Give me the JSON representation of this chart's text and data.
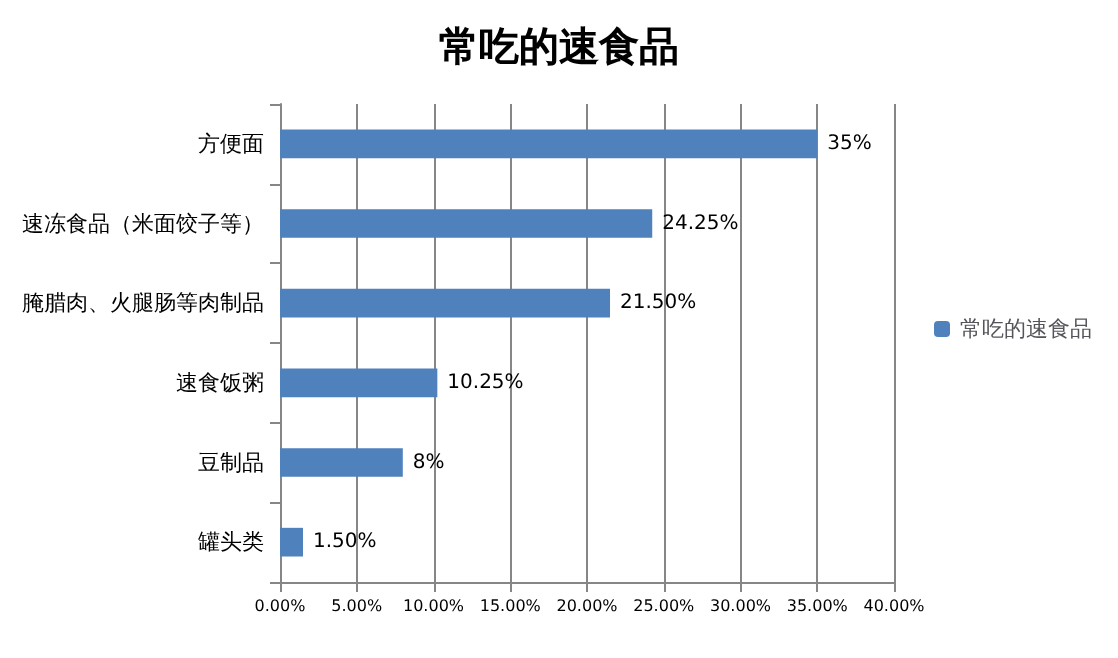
{
  "chart_data": {
    "type": "bar",
    "orientation": "horizontal",
    "title": "常吃的速食品",
    "categories": [
      "方便面",
      "速冻食品（米面饺子等）",
      "腌腊肉、火腿肠等肉制品",
      "速食饭粥",
      "豆制品",
      "罐头类"
    ],
    "series": [
      {
        "name": "常吃的速食品",
        "color": "#4f81bd",
        "values": [
          35,
          24.25,
          21.5,
          10.25,
          8,
          1.5
        ],
        "value_labels": [
          "35%",
          "24.25%",
          "21.50%",
          "10.25%",
          "8%",
          "1.50%"
        ]
      }
    ],
    "xlim": [
      0,
      40
    ],
    "xticks": [
      {
        "value": 0,
        "label": "0.00%"
      },
      {
        "value": 5,
        "label": "5.00%"
      },
      {
        "value": 10,
        "label": "10.00%"
      },
      {
        "value": 15,
        "label": "15.00%"
      },
      {
        "value": 20,
        "label": "20.00%"
      },
      {
        "value": 25,
        "label": "25.00%"
      },
      {
        "value": 30,
        "label": "30.00%"
      },
      {
        "value": 35,
        "label": "35.00%"
      },
      {
        "value": 40,
        "label": "40.00%"
      }
    ],
    "grid": "x",
    "legend": "right"
  }
}
